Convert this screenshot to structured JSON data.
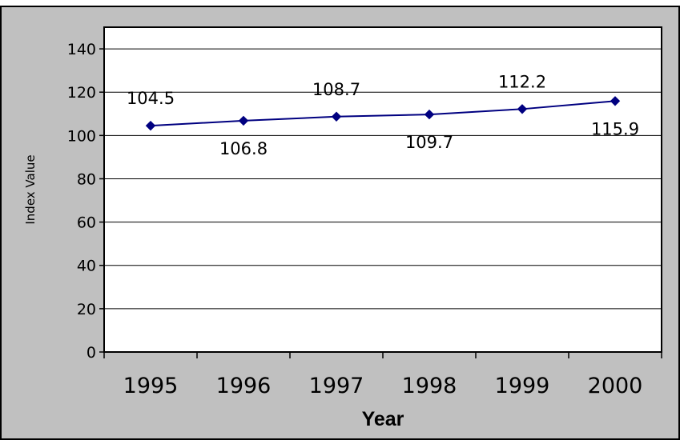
{
  "chart_data": {
    "type": "line",
    "title": "",
    "xlabel": "Year",
    "ylabel": "Index Value",
    "categories": [
      "1995",
      "1996",
      "1997",
      "1998",
      "1999",
      "2000"
    ],
    "series": [
      {
        "values": [
          104.5,
          106.8,
          108.7,
          109.7,
          112.2,
          115.9
        ]
      }
    ],
    "data_labels": [
      "104.5",
      "106.8",
      "108.7",
      "109.7",
      "112.2",
      "115.9"
    ],
    "y_ticks": [
      "0",
      "20",
      "40",
      "60",
      "80",
      "100",
      "120",
      "140"
    ],
    "ylim": [
      0,
      150
    ],
    "grid": true,
    "legend": "none",
    "colors": {
      "line": "#000080",
      "marker": "#000080",
      "frame_background": "#c0c0c0",
      "plot_background": "#ffffff",
      "gridline": "#000000"
    }
  }
}
